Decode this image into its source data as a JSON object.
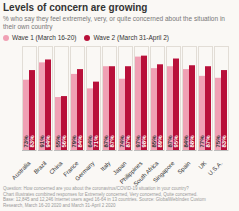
{
  "chart_data": {
    "type": "bar",
    "title": "Levels of concern are growing",
    "subtitle": "% who say they feel extremely, very, or quite concerned about the situation in their own country",
    "footnote": "Question: How concerned are you about the coronavirus/COVID-19 situation in your country?\nChart illustrates combined responses for Extremely concerned, Very concerned, Quite concerned.\nBase: 12,845 and 12,246 Internet users aged 16-64 in 13 countries. Source: GlobalWebIndex Custom\nResearch, March 16-20 2020 and March 31-April 2 2020",
    "categories": [
      "Australia",
      "Brazil",
      "China",
      "France",
      "Germany",
      "Italy",
      "Japan",
      "Philippines",
      "South Africa",
      "Singapore",
      "Spain",
      "UK",
      "U.S.A."
    ],
    "series": [
      {
        "name": "Wave 1 (March 16-20)",
        "color": "#f0a0b4",
        "values": [
          73,
          91,
          55,
          79,
          64,
          87,
          74,
          97,
          85,
          87,
          84,
          77,
          75
        ],
        "value_labels": [
          "73%",
          "91%",
          "55%",
          "79%",
          "64%",
          "87%",
          "74%",
          "97%",
          "85%",
          "87%",
          "84%",
          "77%",
          "75%"
        ]
      },
      {
        "name": "Wave 2 (March 31-April 2)",
        "color": "#b8103a",
        "values": [
          83,
          94,
          56,
          84,
          71,
          87,
          87,
          98,
          89,
          95,
          88,
          87,
          83
        ],
        "value_labels": [
          "83%",
          "94%",
          "56%",
          "84%",
          "71%",
          "87%",
          "87%",
          "98%",
          "89%",
          "95%",
          "88%",
          "87%",
          "83%"
        ]
      }
    ],
    "ylim": [
      0,
      108
    ],
    "tick_labels": "x",
    "data_labels": true,
    "legend": "top-left",
    "grid": false
  }
}
